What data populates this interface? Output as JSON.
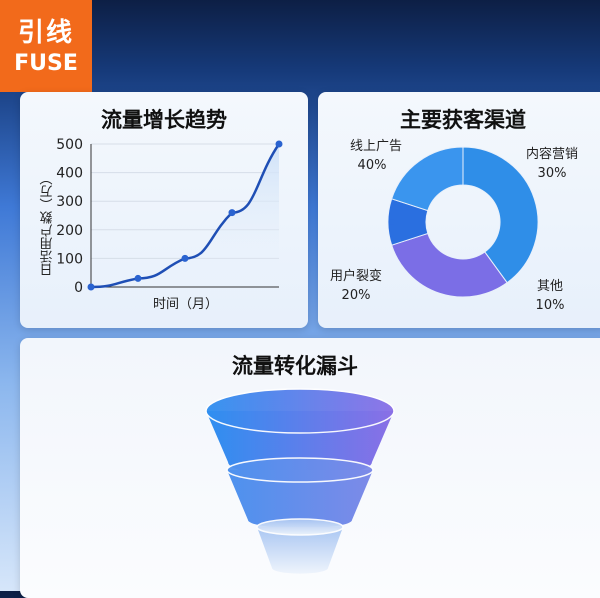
{
  "logo": {
    "cn": "引线",
    "en": "FUSE",
    "color": "#f26a1b"
  },
  "chart_data": [
    {
      "type": "line",
      "title": "流量增长趋势",
      "xlabel": "时间（月）",
      "ylabel": "日活用户数（万）",
      "x": [
        0,
        1,
        2,
        3,
        4
      ],
      "values": [
        0,
        30,
        100,
        260,
        500
      ],
      "ylim": [
        0,
        500
      ],
      "yticks": [
        "0",
        "100",
        "200",
        "300",
        "400",
        "500"
      ],
      "grid": true,
      "color": "#1f4fb5"
    },
    {
      "type": "pie",
      "title": "主要获客渠道",
      "donut": true,
      "categories": [
        "线上广告",
        "内容营销",
        "其他",
        "用户裂变"
      ],
      "values": [
        40,
        30,
        10,
        20
      ],
      "labels": [
        "40%",
        "30%",
        "10%",
        "20%"
      ],
      "colors": [
        "#2f8ee8",
        "#7b6ee6",
        "#2a6fe0",
        "#3a95ee"
      ]
    }
  ],
  "funnel": {
    "title": "流量转化漏斗",
    "stages": 3
  }
}
